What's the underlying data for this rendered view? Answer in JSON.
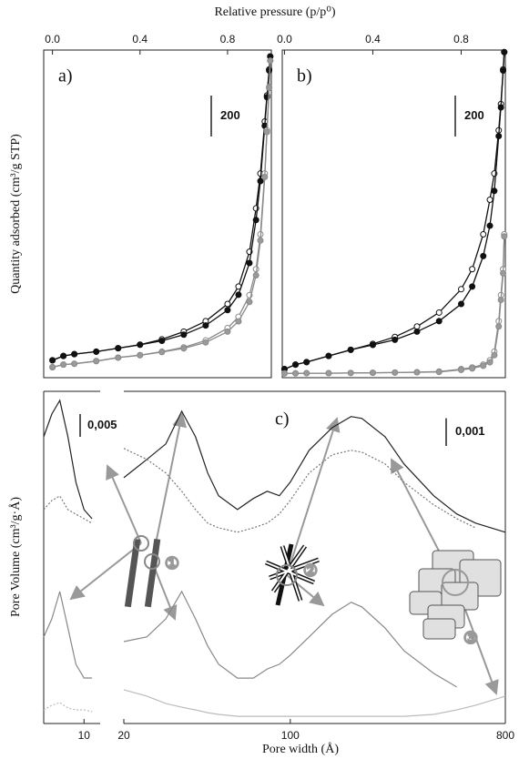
{
  "chart_data": [
    {
      "type": "isotherm",
      "panel_label": "a)",
      "x_label": "Relative pressure (p/p⁰)",
      "y_label": "Quantity adsorbed (cm³/g STP)",
      "x": [
        0,
        0.05,
        0.1,
        0.2,
        0.3,
        0.4,
        0.5,
        0.6,
        0.7,
        0.8,
        0.85,
        0.9,
        0.93,
        0.95,
        0.97,
        0.98,
        0.99,
        0.995
      ],
      "xlim": [
        -0.04,
        1.0
      ],
      "xticks": [
        {
          "value": 0,
          "label": "0.0"
        },
        0.4,
        0.8
      ],
      "ylim": [
        0,
        1600
      ],
      "scale_bar": 200,
      "series": [
        {
          "color": "#111111",
          "marker_fill": "#ffffff",
          "values": [
            85,
            106,
            115,
            127,
            144,
            161,
            187,
            225,
            276,
            360,
            445,
            615,
            827,
            997,
            1251,
            1378,
            1505,
            1569
          ]
        },
        {
          "color": "#111111",
          "marker_fill": "#111111",
          "values": [
            85,
            106,
            115,
            127,
            144,
            161,
            180,
            210,
            255,
            330,
            405,
            560,
            770,
            960,
            1230,
            1370,
            1500,
            1569
          ]
        },
        {
          "color": "#8a8a8a",
          "marker_fill": "#ffffff",
          "values": [
            51,
            64,
            68,
            81,
            98,
            110,
            127,
            148,
            182,
            242,
            297,
            403,
            530,
            700,
            997,
            1208,
            1420,
            1548
          ]
        },
        {
          "color": "#8a8a8a",
          "marker_fill": "#9a9a9a",
          "values": [
            51,
            64,
            68,
            81,
            98,
            110,
            125,
            143,
            172,
            225,
            275,
            370,
            500,
            670,
            980,
            1200,
            1415,
            1548
          ]
        }
      ]
    },
    {
      "type": "isotherm",
      "panel_label": "b)",
      "x": [
        0,
        0.05,
        0.1,
        0.2,
        0.3,
        0.4,
        0.5,
        0.6,
        0.7,
        0.8,
        0.85,
        0.9,
        0.93,
        0.95,
        0.97,
        0.98,
        0.99,
        0.995
      ],
      "xlim": [
        -0.01,
        1.0
      ],
      "xticks": [
        {
          "value": 0,
          "label": "0.0"
        },
        0.4,
        0.8
      ],
      "ylim": [
        0,
        1600
      ],
      "scale_bar": 200,
      "series": [
        {
          "color": "#111111",
          "marker_fill": "#ffffff",
          "values": [
            42,
            64,
            76,
            106,
            136,
            165,
            199,
            250,
            318,
            432,
            530,
            700,
            869,
            997,
            1208,
            1336,
            1505,
            1590
          ]
        },
        {
          "color": "#111111",
          "marker_fill": "#111111",
          "values": [
            42,
            64,
            76,
            106,
            136,
            160,
            185,
            225,
            276,
            360,
            445,
            594,
            742,
            912,
            1180,
            1320,
            1500,
            1590
          ]
        },
        {
          "color": "#8a8a8a",
          "marker_fill": "#ffffff",
          "values": [
            21,
            21,
            22,
            22,
            23,
            24,
            25,
            27,
            30,
            42,
            50,
            64,
            85,
            127,
            276,
            403,
            530,
            700
          ]
        },
        {
          "color": "#8a8a8a",
          "marker_fill": "#9a9a9a",
          "values": [
            21,
            21,
            22,
            22,
            23,
            24,
            25,
            26,
            28,
            38,
            45,
            58,
            75,
            110,
            250,
            380,
            510,
            690
          ]
        }
      ]
    },
    {
      "type": "line",
      "x": [
        5,
        6,
        7,
        8,
        9,
        10,
        11
      ],
      "xlim": [
        5,
        12
      ],
      "xticks": [
        10
      ],
      "ylim": [
        0,
        0.073
      ],
      "scale_bar": {
        "value": 0.005,
        "label": "0,005"
      },
      "series": [
        {
          "color": "#222222",
          "dash": false,
          "values": [
            0.063,
            0.068,
            0.071,
            0.063,
            0.053,
            0.047,
            0.045
          ]
        },
        {
          "color": "#777777",
          "dash": true,
          "values": [
            0.047,
            0.049,
            0.05,
            0.047,
            0.046,
            0.045,
            0.044
          ]
        },
        {
          "color": "#888888",
          "dash": false,
          "values": [
            0.019,
            0.023,
            0.029,
            0.021,
            0.013,
            0.01,
            0.01
          ]
        },
        {
          "color": "#bbbbbb",
          "dash": true,
          "values": [
            0.003,
            0.004,
            0.0046,
            0.0034,
            0.003,
            0.003,
            0.0026
          ]
        }
      ]
    },
    {
      "type": "line",
      "panel_label": "c)",
      "x_label": "Pore width (Å)",
      "y_label": "Pore Volume (cm³/g·Å)",
      "xlog": true,
      "annotations": [
        "①",
        "②",
        "③"
      ],
      "x": [
        20,
        25,
        30,
        35,
        40,
        45,
        50,
        60,
        70,
        80,
        90,
        100,
        120,
        150,
        180,
        200,
        250,
        300,
        400,
        500,
        600,
        800
      ],
      "xlim": [
        20,
        800
      ],
      "xticks": [
        20,
        100,
        800
      ],
      "ylim": [
        0,
        0.012
      ],
      "scale_bar": {
        "value": 0.001,
        "label": "0,001"
      },
      "series": [
        {
          "color": "#222222",
          "dash": false,
          "values": [
            0.00888,
            0.00954,
            0.0101,
            0.01128,
            0.01036,
            0.00905,
            0.00823,
            0.00773,
            0.00813,
            0.00839,
            0.00823,
            0.00872,
            0.00987,
            0.01069,
            0.01109,
            0.01102,
            0.01036,
            0.00938,
            0.00823,
            0.00757,
            0.00724,
            0.00691
          ]
        },
        {
          "color": "#777777",
          "dash": true,
          "values": [
            0.00994,
            0.00954,
            0.00905,
            0.00839,
            0.00773,
            0.00724,
            0.00707,
            0.00691,
            0.00707,
            0.00724,
            0.00757,
            0.00806,
            0.00905,
            0.00971,
            0.00987,
            0.0098,
            0.00938,
            0.00872,
            0.0079,
            0.0074,
            0.00707,
            null
          ]
        },
        {
          "color": "#888888",
          "dash": false,
          "values": [
            0.00296,
            0.00313,
            0.00378,
            0.00477,
            0.00378,
            0.0028,
            0.00214,
            0.00164,
            0.00164,
            0.00197,
            0.00214,
            0.00247,
            0.00313,
            0.00395,
            0.00438,
            0.00421,
            0.00345,
            0.00263,
            0.00181,
            0.00132,
            null,
            null
          ]
        },
        {
          "color": "#bbbbbb",
          "dash": false,
          "values": [
            0.00122,
            0.00099,
            0.00072,
            0.00059,
            0.00049,
            0.00039,
            0.00033,
            0.00026,
            0.00026,
            0.00026,
            0.00026,
            0.00026,
            0.00026,
            0.00026,
            0.00026,
            0.00026,
            0.00026,
            0.00026,
            0.00033,
            0.00049,
            0.00066,
            0.00099
          ]
        }
      ]
    }
  ]
}
